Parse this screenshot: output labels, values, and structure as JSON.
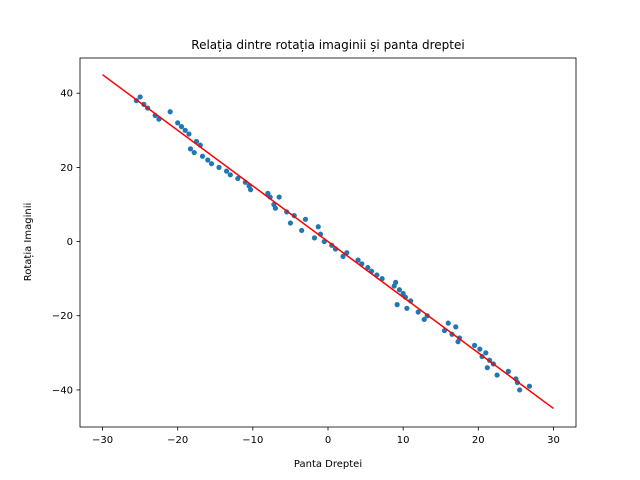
{
  "chart_data": {
    "type": "scatter",
    "title": "Relația dintre rotația imaginii și panta dreptei",
    "xlabel": "Panta Dreptei",
    "ylabel": "Rotația Imaginii",
    "xlim": [
      -33,
      33
    ],
    "ylim": [
      -50,
      49.5
    ],
    "x_ticks": [
      -30,
      -20,
      -10,
      0,
      10,
      20,
      30
    ],
    "y_ticks": [
      -40,
      -20,
      0,
      20,
      40
    ],
    "grid": false,
    "colors": {
      "points": "#1f77b4",
      "fit_line": "#ff0000"
    },
    "fit_line": {
      "x": [
        -30,
        30
      ],
      "y": [
        45,
        -45
      ]
    },
    "points": [
      [
        -25.5,
        38
      ],
      [
        -25,
        39
      ],
      [
        -24.5,
        37
      ],
      [
        -24,
        36
      ],
      [
        -23,
        34
      ],
      [
        -22.5,
        33
      ],
      [
        -21,
        35
      ],
      [
        -20,
        32
      ],
      [
        -19.5,
        31
      ],
      [
        -19,
        30
      ],
      [
        -18.5,
        29
      ],
      [
        -18.3,
        25
      ],
      [
        -17.8,
        24
      ],
      [
        -17.5,
        27
      ],
      [
        -17,
        26
      ],
      [
        -16.7,
        23
      ],
      [
        -16,
        22
      ],
      [
        -15.5,
        21
      ],
      [
        -14.5,
        20
      ],
      [
        -13.5,
        19
      ],
      [
        -13,
        18
      ],
      [
        -12,
        17
      ],
      [
        -11,
        16
      ],
      [
        -10.5,
        15
      ],
      [
        -10.3,
        14
      ],
      [
        -8,
        13
      ],
      [
        -7.7,
        12
      ],
      [
        -7.2,
        10
      ],
      [
        -7,
        9
      ],
      [
        -6.5,
        12
      ],
      [
        -5.5,
        8
      ],
      [
        -5,
        5
      ],
      [
        -4.5,
        7
      ],
      [
        -3.5,
        3
      ],
      [
        -3,
        6
      ],
      [
        -1.8,
        1
      ],
      [
        -1.3,
        4
      ],
      [
        -1,
        2
      ],
      [
        -0.5,
        0
      ],
      [
        0.5,
        -1
      ],
      [
        1,
        -2
      ],
      [
        2,
        -4
      ],
      [
        2.5,
        -3
      ],
      [
        4,
        -5
      ],
      [
        4.5,
        -6
      ],
      [
        5.3,
        -7
      ],
      [
        5.8,
        -8
      ],
      [
        6.5,
        -9
      ],
      [
        7.2,
        -10
      ],
      [
        8.8,
        -12
      ],
      [
        9,
        -11
      ],
      [
        9.2,
        -17
      ],
      [
        9.5,
        -13
      ],
      [
        10,
        -14
      ],
      [
        10.3,
        -15
      ],
      [
        10.5,
        -18
      ],
      [
        11,
        -16
      ],
      [
        12,
        -19
      ],
      [
        12.8,
        -21
      ],
      [
        13.2,
        -20
      ],
      [
        15.5,
        -24
      ],
      [
        16,
        -22
      ],
      [
        16.5,
        -25
      ],
      [
        17,
        -23
      ],
      [
        17.3,
        -27
      ],
      [
        17.5,
        -26
      ],
      [
        19.5,
        -28
      ],
      [
        20.2,
        -29
      ],
      [
        20.5,
        -31
      ],
      [
        21,
        -30
      ],
      [
        21.2,
        -34
      ],
      [
        21.5,
        -32
      ],
      [
        22,
        -33
      ],
      [
        22.5,
        -36
      ],
      [
        24,
        -35
      ],
      [
        25,
        -37
      ],
      [
        25.2,
        -38
      ],
      [
        25.5,
        -40
      ],
      [
        26.8,
        -39
      ]
    ]
  }
}
